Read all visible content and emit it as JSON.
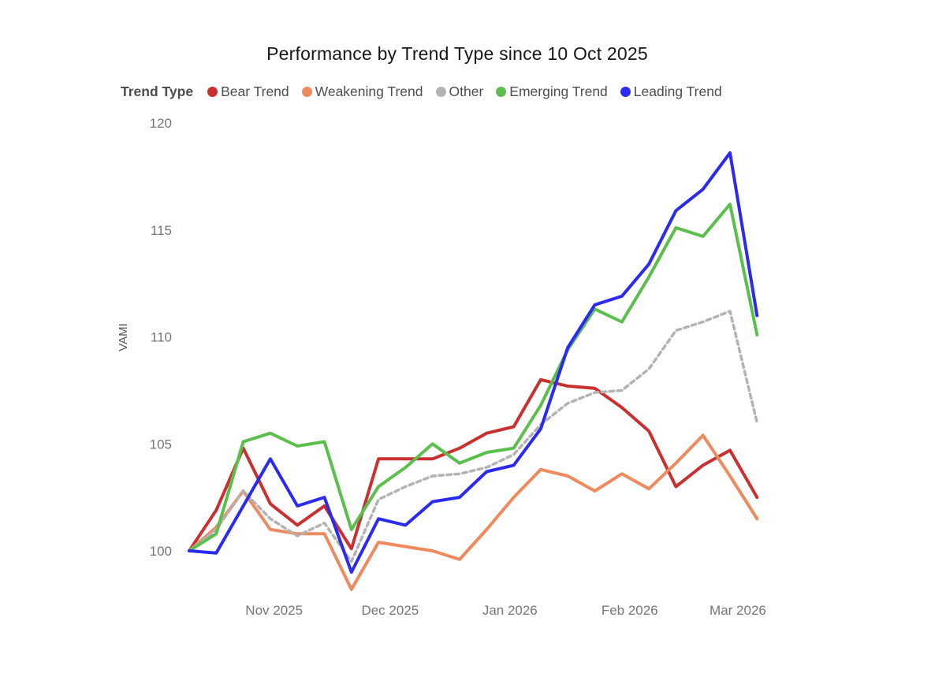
{
  "title": "Performance by Trend Type since 10 Oct 2025",
  "legend": {
    "label": "Trend Type",
    "items": [
      {
        "name": "Bear Trend",
        "color": "#c9302f"
      },
      {
        "name": "Weakening Trend",
        "color": "#ef8a5e"
      },
      {
        "name": "Other",
        "color": "#b3b3b3"
      },
      {
        "name": "Emerging Trend",
        "color": "#5abf4c"
      },
      {
        "name": "Leading Trend",
        "color": "#2b2bef"
      }
    ]
  },
  "chart_data": {
    "type": "line",
    "title": "Performance by Trend Type since 10 Oct 2025",
    "xlabel": "",
    "ylabel": "VAMI",
    "ylim": [
      97.5,
      120.5
    ],
    "yticks": [
      100,
      105,
      110,
      115,
      120
    ],
    "grid": false,
    "legend_position": "top",
    "x_unit": "weeks since 10 Oct 2025",
    "x_weeks": [
      0,
      1,
      2,
      3,
      4,
      5,
      6,
      7,
      8,
      9,
      10,
      11,
      12,
      13,
      14,
      15,
      16,
      17,
      18,
      19,
      20,
      21
    ],
    "xticks": [
      {
        "label": "Nov 2025",
        "week": 3.14
      },
      {
        "label": "Dec 2025",
        "week": 7.43
      },
      {
        "label": "Jan 2026",
        "week": 11.86
      },
      {
        "label": "Feb 2026",
        "week": 16.29
      },
      {
        "label": "Mar 2026",
        "week": 20.29
      }
    ],
    "series": [
      {
        "name": "Bear Trend",
        "color": "#c9302f",
        "dash": "",
        "values": [
          100,
          101.9,
          104.8,
          102.2,
          101.2,
          102.1,
          100.1,
          104.3,
          104.3,
          104.3,
          104.8,
          105.5,
          105.8,
          108.0,
          107.7,
          107.6,
          106.7,
          105.6,
          103.0,
          104.0,
          104.7,
          102.5
        ]
      },
      {
        "name": "Weakening Trend",
        "color": "#ef8a5e",
        "dash": "",
        "values": [
          100,
          101.1,
          102.8,
          101.0,
          100.8,
          100.8,
          98.2,
          100.4,
          100.2,
          100.0,
          99.6,
          101.0,
          102.5,
          103.8,
          103.5,
          102.8,
          103.6,
          102.9,
          104.1,
          105.4,
          103.5,
          101.5
        ]
      },
      {
        "name": "Other",
        "color": "#b3b3b3",
        "dash": "5.5 4.5",
        "values": [
          100,
          101.0,
          102.8,
          101.5,
          100.7,
          101.3,
          99.5,
          102.4,
          103.0,
          103.5,
          103.6,
          103.9,
          104.5,
          105.9,
          106.9,
          107.4,
          107.5,
          108.5,
          110.3,
          110.7,
          111.2,
          106.0
        ]
      },
      {
        "name": "Emerging Trend",
        "color": "#5abf4c",
        "dash": "",
        "values": [
          100,
          100.8,
          105.1,
          105.5,
          104.9,
          105.1,
          101.0,
          103.0,
          103.9,
          105.0,
          104.1,
          104.6,
          104.8,
          106.8,
          109.4,
          111.3,
          110.7,
          112.8,
          115.1,
          114.7,
          116.2,
          110.1
        ]
      },
      {
        "name": "Leading Trend",
        "color": "#2b2bef",
        "dash": "",
        "values": [
          100,
          99.9,
          102.1,
          104.3,
          102.1,
          102.5,
          99.0,
          101.5,
          101.2,
          102.3,
          102.5,
          103.7,
          104.0,
          105.7,
          109.5,
          111.5,
          111.9,
          113.4,
          115.9,
          116.9,
          118.6,
          111.0
        ]
      }
    ]
  }
}
